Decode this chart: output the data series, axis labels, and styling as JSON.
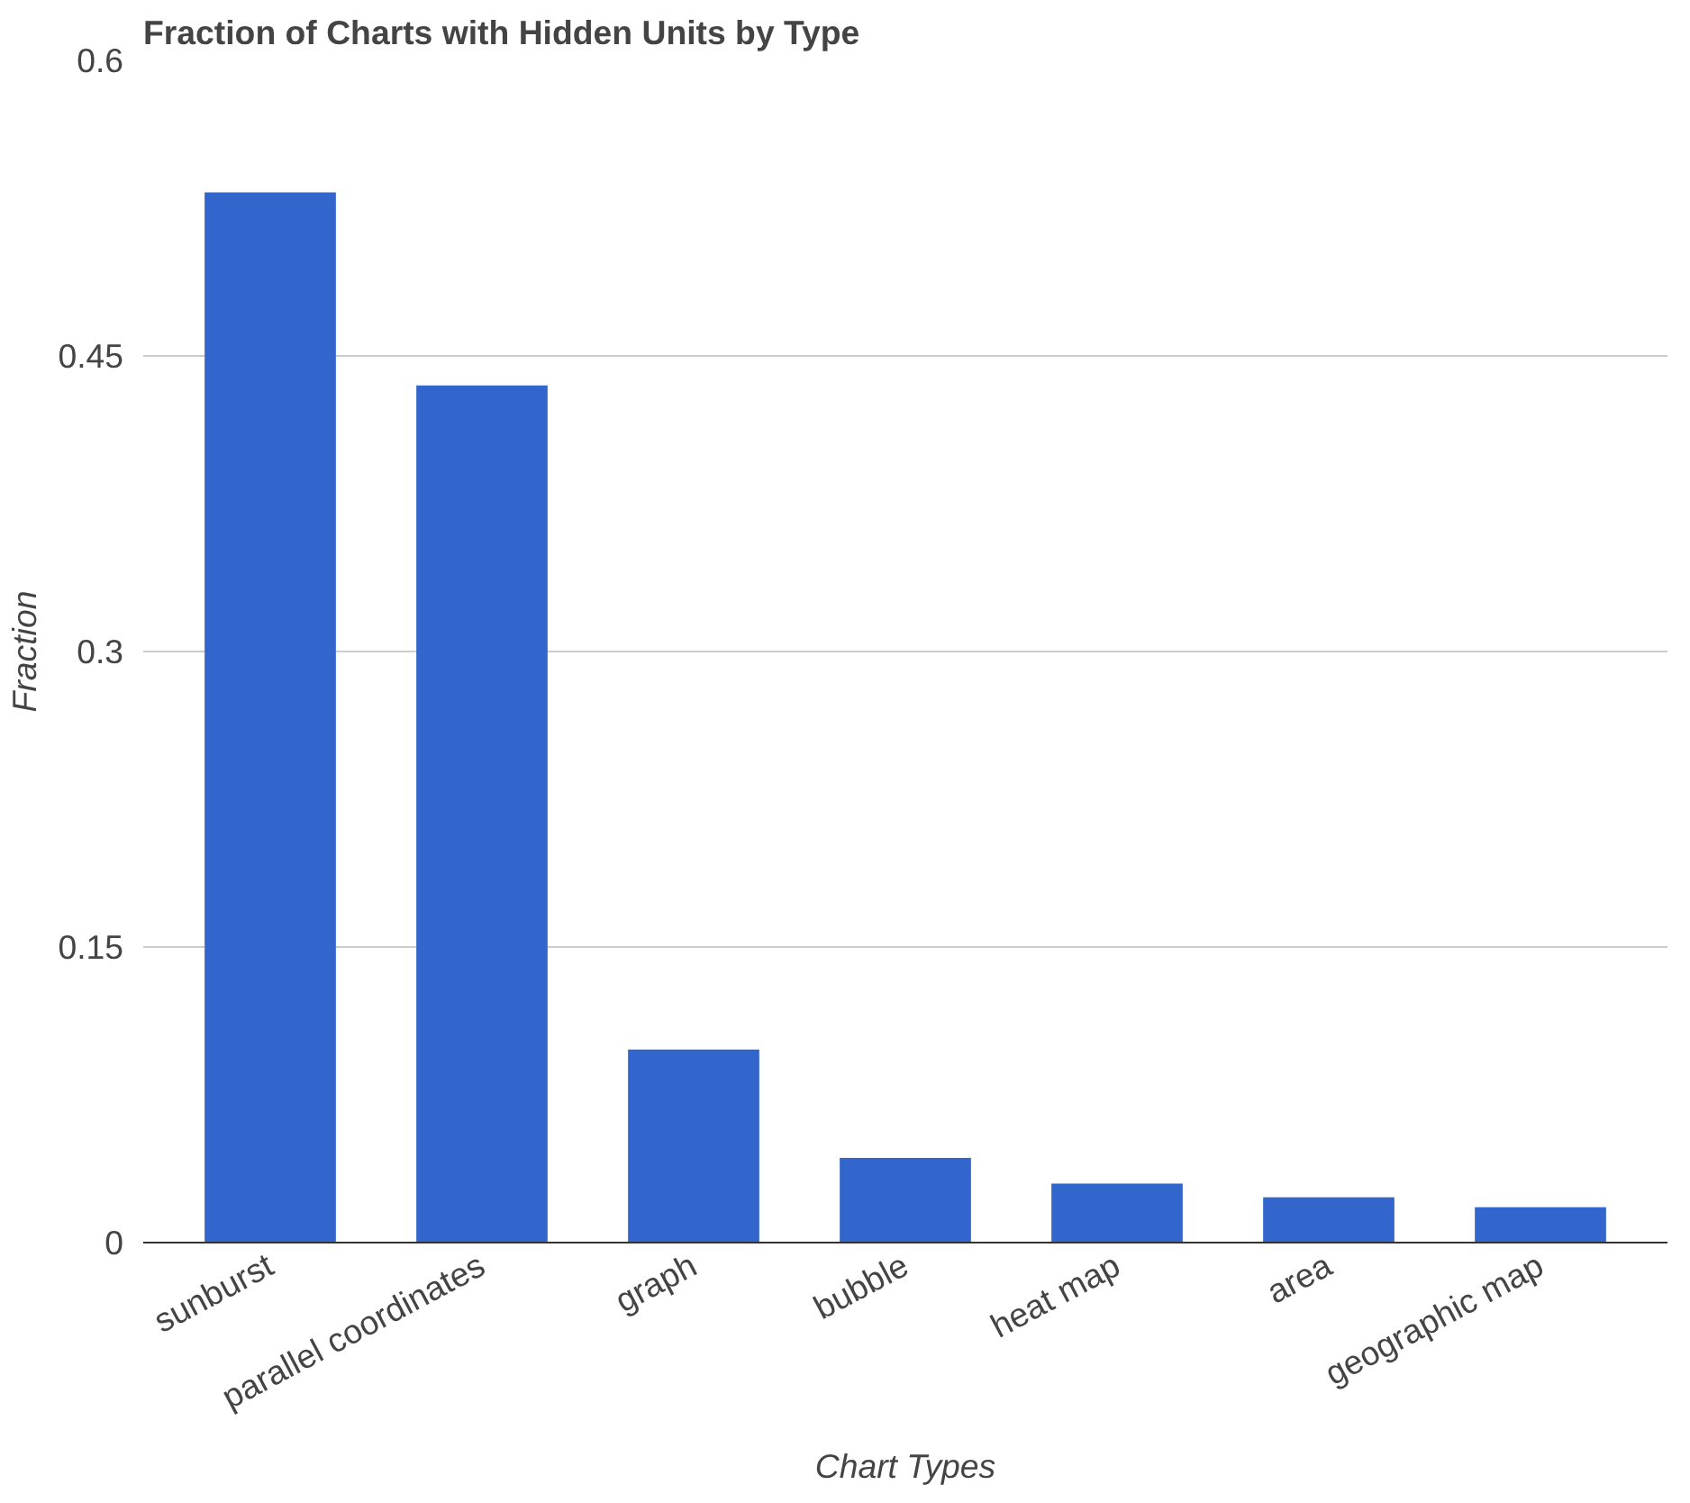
{
  "chart_data": {
    "type": "bar",
    "title": "Fraction of Charts with Hidden Units by Type",
    "xlabel": "Chart Types",
    "ylabel": "Fraction",
    "categories": [
      "sunburst",
      "parallel coordinates",
      "graph",
      "bubble",
      "heat map",
      "area",
      "geographic map"
    ],
    "values": [
      0.533,
      0.435,
      0.098,
      0.043,
      0.03,
      0.023,
      0.018
    ],
    "color": "#3366cc",
    "ylim": [
      0,
      0.6
    ],
    "yticks": [
      0,
      0.15,
      0.3,
      0.45,
      0.6
    ],
    "grid": "y"
  }
}
